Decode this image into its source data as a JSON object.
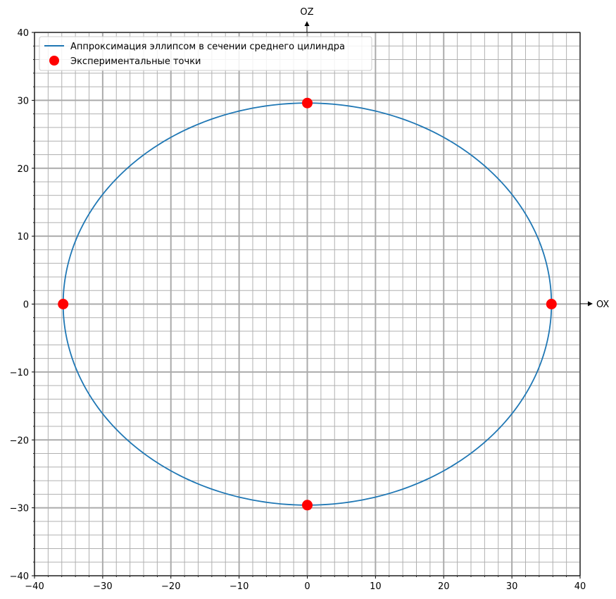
{
  "chart_data": {
    "type": "scatter",
    "title": "",
    "xlim": [
      -40,
      40
    ],
    "ylim": [
      -40,
      40
    ],
    "x_major_ticks": [
      -40,
      -30,
      -20,
      -10,
      0,
      10,
      20,
      30,
      40
    ],
    "y_major_ticks": [
      -40,
      -30,
      -20,
      -10,
      0,
      10,
      20,
      30,
      40
    ],
    "x_tick_labels": [
      "−40",
      "−30",
      "−20",
      "−10",
      "0",
      "10",
      "20",
      "30",
      "40"
    ],
    "y_tick_labels": [
      "−40",
      "−30",
      "−20",
      "−10",
      "0",
      "10",
      "20",
      "30",
      "40"
    ],
    "minor_step": 2,
    "grid": true,
    "x_axis_arrow_label": "OX",
    "z_axis_arrow_label": "OZ",
    "legend_placement": "top-left",
    "series": [
      {
        "name": "Аппроксимация эллипсом в сечении среднего цилиндра",
        "kind": "ellipse",
        "center": [
          0,
          0
        ],
        "semi_axis_x": 35.8,
        "semi_axis_z": 29.6,
        "color": "#1f77b4"
      },
      {
        "name": "Экспериментальные точки",
        "kind": "points",
        "x": [
          -35.8,
          35.8,
          0,
          0
        ],
        "y": [
          0,
          0,
          29.6,
          -29.6
        ],
        "color": "#ff0000"
      }
    ]
  }
}
